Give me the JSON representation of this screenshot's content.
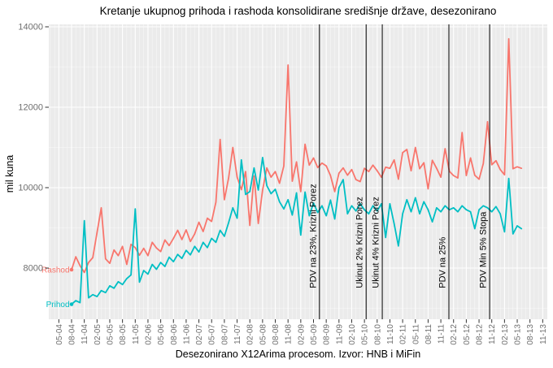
{
  "chart_data": {
    "type": "line",
    "title": "Kretanje ukupnog prihoda i rashoda konsolidirane središnje države, desezonirano",
    "xlabel": "Desezonirano X12Arima procesom. Izvor: HNB i MiFin",
    "ylabel": "mil kuna",
    "x_start": "2004-08",
    "x_freq": "monthly",
    "ylim": [
      6730,
      14060
    ],
    "y_major_ticks": [
      8000,
      10000,
      12000,
      14000
    ],
    "y_minor_gridlines": [
      7000,
      9000,
      11000,
      13000
    ],
    "x_tick_labels": [
      "05-04",
      "08-04",
      "11-04",
      "02-05",
      "05-05",
      "08-05",
      "11-05",
      "02-06",
      "05-06",
      "08-06",
      "11-06",
      "02-07",
      "05-07",
      "08-07",
      "11-07",
      "02-08",
      "05-08",
      "08-08",
      "11-08",
      "02-09",
      "05-09",
      "08-09",
      "11-09",
      "02-10",
      "05-10",
      "08-10",
      "11-10",
      "02-11",
      "05-11",
      "08-11",
      "11-11",
      "02-12",
      "05-12",
      "08-12",
      "11-12",
      "02-13",
      "05-13",
      "08-13",
      "11-13"
    ],
    "x_tick_month_offsets_from_start": [
      -3,
      0,
      3,
      6,
      9,
      12,
      15,
      18,
      21,
      24,
      27,
      30,
      33,
      36,
      39,
      42,
      45,
      48,
      51,
      54,
      57,
      60,
      63,
      66,
      69,
      72,
      75,
      78,
      81,
      84,
      87,
      90,
      93,
      96,
      99,
      102,
      105,
      108,
      111
    ],
    "grid": true,
    "legend": "direct-labels-at-series-start",
    "series": [
      {
        "name": "Rashod",
        "color": "#F8766D",
        "values": [
          7960,
          8280,
          8060,
          7890,
          8140,
          8260,
          8880,
          9500,
          8230,
          8120,
          8450,
          8310,
          8540,
          8090,
          8590,
          8510,
          8320,
          8490,
          8310,
          8640,
          8500,
          8410,
          8700,
          8560,
          8740,
          8940,
          8710,
          8950,
          8660,
          8850,
          9140,
          8910,
          9240,
          9160,
          9640,
          11200,
          9700,
          10240,
          11000,
          10260,
          9950,
          10400,
          9060,
          10290,
          9110,
          9940,
          10490,
          10260,
          10400,
          10110,
          10540,
          13050,
          10160,
          10640,
          9900,
          11080,
          10560,
          10740,
          10500,
          10610,
          10540,
          10300,
          9900,
          10360,
          10490,
          10310,
          10450,
          10200,
          10150,
          10480,
          10400,
          10560,
          10420,
          10260,
          10510,
          10480,
          10690,
          10210,
          10870,
          10950,
          10420,
          11000,
          10470,
          10620,
          9970,
          10680,
          10480,
          10260,
          10970,
          10410,
          10300,
          10240,
          11370,
          10300,
          10740,
          10310,
          10210,
          10600,
          11640,
          10570,
          10670,
          10450,
          10320,
          13700,
          10470,
          10520,
          10480
        ]
      },
      {
        "name": "Prihod",
        "color": "#00BFC4",
        "values": [
          7100,
          7190,
          7140,
          9180,
          7260,
          7340,
          7290,
          7440,
          7390,
          7560,
          7500,
          7660,
          7590,
          7740,
          7830,
          9470,
          7650,
          7940,
          7850,
          8090,
          7970,
          8140,
          8040,
          8270,
          8160,
          8340,
          8240,
          8440,
          8330,
          8540,
          8400,
          8640,
          8510,
          8740,
          8640,
          8940,
          8790,
          9130,
          9500,
          9240,
          10690,
          9830,
          9900,
          10490,
          9940,
          10750,
          10050,
          9850,
          9960,
          9650,
          9470,
          9700,
          9320,
          9870,
          8820,
          9890,
          9300,
          9620,
          9380,
          9550,
          9300,
          9690,
          9220,
          10000,
          10200,
          9350,
          9550,
          9420,
          9600,
          9450,
          9350,
          9550,
          9420,
          9600,
          8760,
          9600,
          9100,
          8550,
          9350,
          9700,
          9400,
          9750,
          9350,
          9650,
          9450,
          9150,
          9500,
          9400,
          9550,
          9450,
          9500,
          9400,
          9550,
          9450,
          9400,
          8980,
          9450,
          9550,
          9500,
          9400,
          9530,
          9350,
          8900,
          10230,
          8850,
          9050,
          8980
        ]
      }
    ],
    "event_lines": [
      {
        "label": "PDV na 23%, Krizni Porez",
        "month_index": 58.4
      },
      {
        "label": "Ukinut 2% Krizni Porez",
        "month_index": 69.4
      },
      {
        "label": "Ukinut 4% Krizni Porez",
        "month_index": 73.2
      },
      {
        "label": "PDV na 25%",
        "month_index": 88.9
      },
      {
        "label": "PDV Min 5% Stopa",
        "month_index": 98.5
      }
    ]
  },
  "colors": {
    "panel_background": "#EBEBEB",
    "grid": "#FFFFFF",
    "axis_text": "#6E6E6E",
    "tick_mark": "#333333",
    "event_line": "#000000",
    "annotation_text": "#000000",
    "rashod": "#F8766D",
    "prihod": "#00BFC4"
  }
}
